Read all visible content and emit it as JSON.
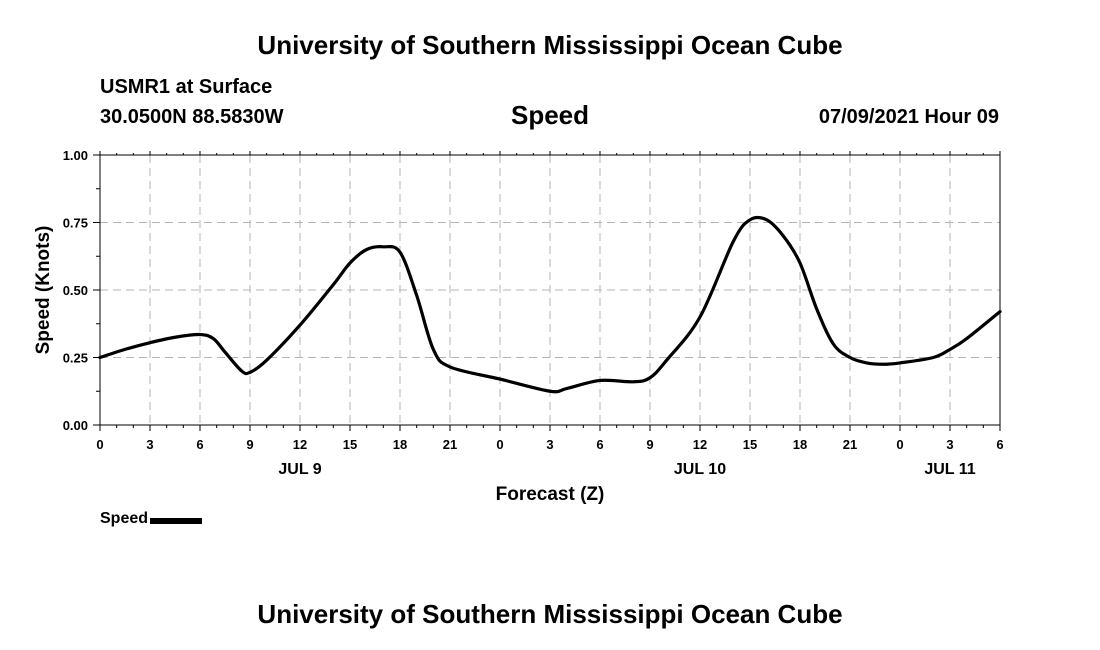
{
  "header": {
    "title": "University of Southern Mississippi Ocean Cube",
    "station": "USMR1 at Surface",
    "coords": "30.0500N  88.5830W",
    "variable": "Speed",
    "datetime": "07/09/2021 Hour 09"
  },
  "footer": {
    "title": "University of Southern Mississippi Ocean Cube"
  },
  "legend": {
    "label": "Speed"
  },
  "chart_data": {
    "type": "line",
    "title": "Speed",
    "xlabel": "Forecast (Z)",
    "ylabel": "Speed (Knots)",
    "xlim": [
      0,
      54
    ],
    "ylim": [
      0,
      1.0
    ],
    "yticks": [
      0.0,
      0.25,
      0.5,
      0.75,
      1.0
    ],
    "ytick_labels": [
      "0.00",
      "0.25",
      "0.50",
      "0.75",
      "1.00"
    ],
    "xticks": [
      0,
      3,
      6,
      9,
      12,
      15,
      18,
      21,
      24,
      27,
      30,
      33,
      36,
      39,
      42,
      45,
      48,
      51,
      54
    ],
    "xtick_labels": [
      "0",
      "3",
      "6",
      "9",
      "12",
      "15",
      "18",
      "21",
      "0",
      "3",
      "6",
      "9",
      "12",
      "15",
      "18",
      "21",
      "0",
      "3",
      "6"
    ],
    "date_labels": [
      {
        "hour": 12,
        "label": "JUL 9"
      },
      {
        "hour": 36,
        "label": "JUL 10"
      },
      {
        "hour": 51,
        "label": "JUL 11"
      }
    ],
    "grid": true,
    "color": "#000000",
    "series": [
      {
        "name": "Speed",
        "x": [
          0,
          1.5,
          3,
          4.5,
          6,
          6.8,
          7.5,
          8.5,
          9,
          10,
          12,
          14,
          15,
          16,
          17,
          18,
          19,
          20,
          21,
          24,
          27,
          28,
          30,
          32,
          33,
          34,
          36,
          38,
          39,
          40,
          41,
          42,
          43,
          44,
          45,
          46,
          47,
          48,
          50,
          51,
          52,
          54
        ],
        "y": [
          0.25,
          0.28,
          0.305,
          0.325,
          0.335,
          0.32,
          0.27,
          0.2,
          0.195,
          0.24,
          0.37,
          0.52,
          0.6,
          0.65,
          0.66,
          0.64,
          0.48,
          0.28,
          0.215,
          0.17,
          0.125,
          0.135,
          0.165,
          0.16,
          0.175,
          0.24,
          0.4,
          0.68,
          0.76,
          0.76,
          0.7,
          0.6,
          0.43,
          0.3,
          0.25,
          0.23,
          0.225,
          0.23,
          0.25,
          0.28,
          0.32,
          0.42
        ]
      }
    ]
  }
}
